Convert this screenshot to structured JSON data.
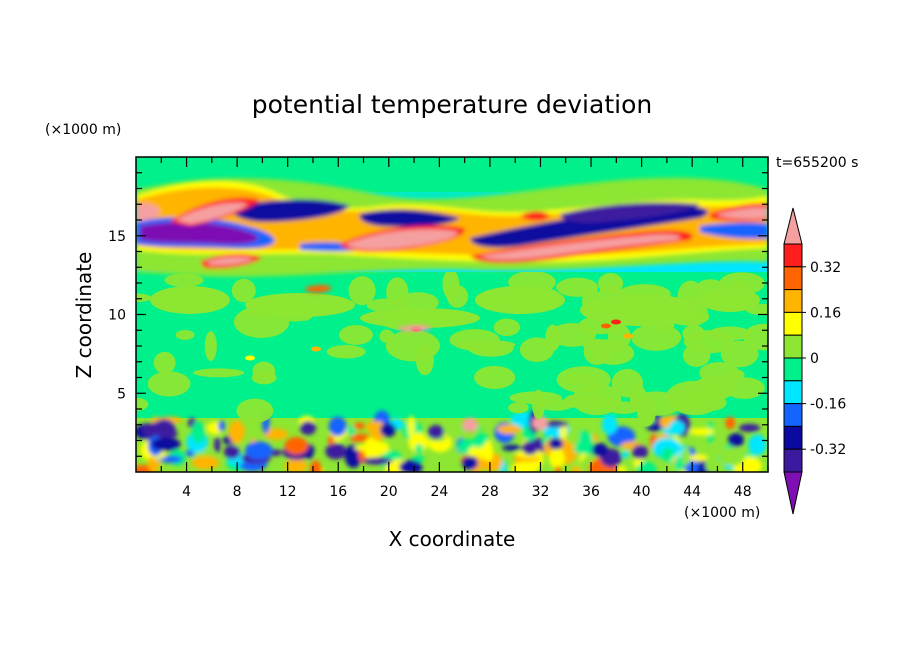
{
  "chart_data": {
    "type": "heatmap",
    "title": "potential temperature deviation",
    "xlabel": "X coordinate",
    "ylabel": "Z coordinate",
    "x_unit": "(×1000 m)",
    "y_unit": "(×1000 m)",
    "time_label": "t=655200 s",
    "xlim": [
      0,
      50
    ],
    "ylim": [
      0,
      20
    ],
    "x_ticks": [
      4,
      8,
      12,
      16,
      20,
      24,
      28,
      32,
      36,
      40,
      44,
      48
    ],
    "y_ticks": [
      5,
      10,
      15
    ],
    "colorbar": {
      "levels": [
        -0.4,
        -0.32,
        -0.24,
        -0.16,
        -0.08,
        0,
        0.08,
        0.16,
        0.24,
        0.32,
        0.4
      ],
      "colors": [
        "#7d0fb3",
        "#3c1aa0",
        "#0a0aa0",
        "#1464ff",
        "#00e6ff",
        "#00f08c",
        "#8ce632",
        "#ffff00",
        "#ffb400",
        "#ff6400",
        "#ff1e1e",
        "#f5a0a0"
      ],
      "tick_labels": [
        "0.32",
        "0.16",
        "0",
        "-0.16",
        "-0.32"
      ],
      "tick_values": [
        0.32,
        0.16,
        0,
        -0.16,
        -0.32
      ],
      "extend": "both"
    },
    "grid": false
  }
}
